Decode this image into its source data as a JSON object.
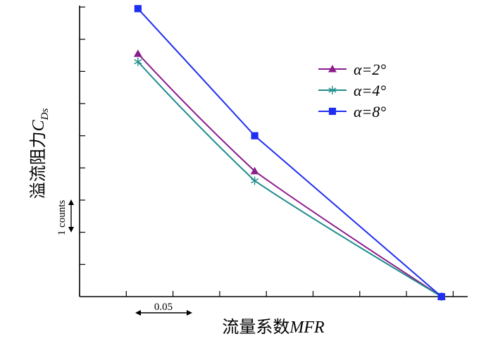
{
  "chart_data": {
    "type": "line",
    "xlabel": {
      "prefix": "流量系数",
      "italic": "MFR"
    },
    "ylabel": {
      "prefix": "溢流阻力",
      "italic": "C",
      "sub": "Ds"
    },
    "x": [
      0.04,
      0.09,
      0.17
    ],
    "xlim": [
      0.015,
      0.18
    ],
    "ylim": [
      0,
      9
    ],
    "y_ticks": [
      1,
      2,
      3,
      4,
      5,
      6,
      7,
      8,
      9
    ],
    "x_ticks": [
      0.015,
      0.035,
      0.055,
      0.075,
      0.095,
      0.115,
      0.135,
      0.155,
      0.175
    ],
    "series": [
      {
        "name": "α=2°",
        "marker": "triangle",
        "color": "#8B1C8B",
        "values": [
          7.55,
          3.9,
          0.0
        ]
      },
      {
        "name": "α=4°",
        "marker": "asterisk",
        "color": "#1E8C8C",
        "values": [
          7.3,
          3.6,
          0.0
        ]
      },
      {
        "name": "α=8°",
        "marker": "square",
        "color": "#1F2EF2",
        "values": [
          8.95,
          5.0,
          0.0
        ]
      }
    ],
    "legend_position": "top-right",
    "annotations": {
      "y_scale_label": "1 counts",
      "x_scale_label": "0.05"
    }
  }
}
